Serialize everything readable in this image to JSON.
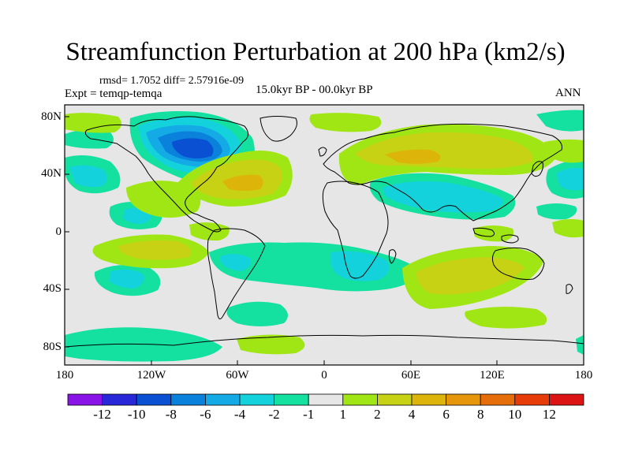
{
  "title": "Streamfunction Perturbation at 200 hPa (km2/s)",
  "stats_line": "rmsd= 1.7052 diff= 2.57916e-09",
  "experiment_label": "Expt = temqp-temqa",
  "period_label": "15.0kyr BP - 00.0kyr BP",
  "season_label": "ANN",
  "y_tick_labels": [
    "80N",
    "40N",
    "0",
    "40S",
    "80S"
  ],
  "x_tick_labels": [
    "180",
    "120W",
    "60W",
    "0",
    "60E",
    "120E",
    "180"
  ],
  "colorbar": {
    "labels": [
      "-12",
      "-10",
      "-8",
      "-6",
      "-4",
      "-2",
      "-1",
      "1",
      "2",
      "4",
      "6",
      "8",
      "10",
      "12"
    ],
    "colors": [
      "#8a14e8",
      "#2828d8",
      "#0a50d2",
      "#0a82dc",
      "#14aae6",
      "#14d2dc",
      "#14e0a0",
      "#e6e6e6",
      "#a0e614",
      "#c8d214",
      "#dcb40a",
      "#e6960a",
      "#e66e0a",
      "#e63c0a",
      "#dc1414"
    ]
  },
  "map": {
    "projection": "cylindrical-equidistant",
    "longitude_range": [
      -180,
      180
    ],
    "latitude_range": [
      -90,
      90
    ],
    "background_color": "#e6e6e6",
    "coastline_color": "#000000"
  }
}
